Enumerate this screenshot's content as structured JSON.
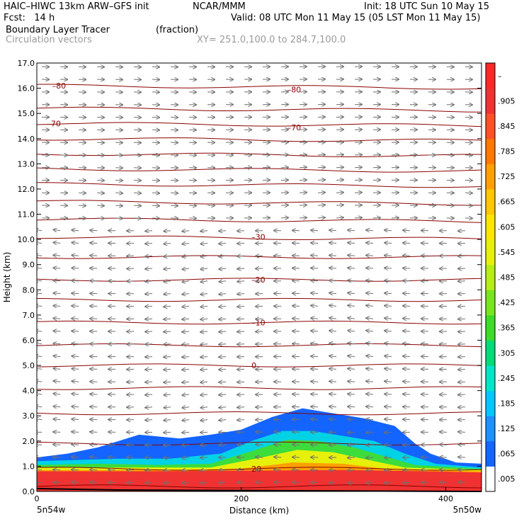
{
  "header": {
    "model": "HAIC–HIWC 13km ARW–GFS init",
    "org": "NCAR/MMM",
    "init": "Init: 18 UTC Sun 10 May 15",
    "fcst": "Fcst:   14 h",
    "valid": "Valid: 08 UTC Mon 11 May 15 (05 LST Mon 11 May 15)",
    "field": "Boundary Layer Tracer",
    "field_units": "(fraction)",
    "vectors": "Circulation vectors",
    "xy": "XY= 251.0,100.0 to 284.7,100.0"
  },
  "chart_data": {
    "type": "heatmap",
    "xlabel": "Distance (km)",
    "ylabel": "Height (km)",
    "xlim": [
      0,
      435
    ],
    "ylim": [
      0,
      17
    ],
    "x_ticks": [
      0,
      200,
      400
    ],
    "y_ticks": [
      "0.0",
      "1.0",
      "2.0",
      "3.0",
      "4.0",
      "5.0",
      "6.0",
      "7.0",
      "8.0",
      "9.0",
      "10.0",
      "11.0",
      "12.0",
      "13.0",
      "14.0",
      "15.0",
      "16.0",
      "17.0"
    ],
    "x_end_labels": [
      "5n54w",
      "5n50w"
    ],
    "colorbar": {
      "labels": [
        ".005",
        ".065",
        ".125",
        ".185",
        ".245",
        ".305",
        ".365",
        ".425",
        ".485",
        ".545",
        ".605",
        ".665",
        ".725",
        ".785",
        ".845",
        ".905",
        "–"
      ],
      "colors": [
        "#ffffff",
        "#1464ff",
        "#1e90ff",
        "#00c8ff",
        "#00e6c8",
        "#00dc78",
        "#3cdc28",
        "#78e61e",
        "#b4ee14",
        "#e6f00a",
        "#ffe600",
        "#ffc800",
        "#ffa000",
        "#ff7800",
        "#ff5028",
        "#f03232",
        "#ff2828"
      ]
    },
    "isotherms": [
      {
        "z": 0.2,
        "label": ""
      },
      {
        "z": 0.9,
        "label": "20"
      },
      {
        "z": 1.9,
        "label": ""
      },
      {
        "z": 3.1,
        "label": ""
      },
      {
        "z": 4.1,
        "label": ""
      },
      {
        "z": 5.0,
        "label": "0"
      },
      {
        "z": 5.8,
        "label": ""
      },
      {
        "z": 6.7,
        "label": "–10"
      },
      {
        "z": 7.6,
        "label": ""
      },
      {
        "z": 8.4,
        "label": "–20"
      },
      {
        "z": 9.3,
        "label": ""
      },
      {
        "z": 10.1,
        "label": "–30"
      },
      {
        "z": 10.8,
        "label": ""
      },
      {
        "z": 11.5,
        "label": ""
      },
      {
        "z": 12.2,
        "label": ""
      },
      {
        "z": 12.8,
        "label": ""
      },
      {
        "z": 13.4,
        "label": ""
      },
      {
        "z": 14.0,
        "label": ""
      },
      {
        "z": 14.6,
        "label": "–70"
      },
      {
        "z": 15.2,
        "label": ""
      },
      {
        "z": 16.1,
        "label": "–80"
      }
    ],
    "tracer_bands": [
      {
        "level": 0.005,
        "color": "#1464ff",
        "top": [
          [
            0,
            1.35
          ],
          [
            30,
            1.5
          ],
          [
            60,
            1.75
          ],
          [
            100,
            2.25
          ],
          [
            140,
            2.1
          ],
          [
            170,
            2.25
          ],
          [
            200,
            2.45
          ],
          [
            230,
            2.95
          ],
          [
            260,
            3.3
          ],
          [
            290,
            3.1
          ],
          [
            320,
            2.9
          ],
          [
            350,
            2.6
          ],
          [
            370,
            1.9
          ],
          [
            385,
            1.5
          ],
          [
            410,
            1.15
          ],
          [
            435,
            1.1
          ]
        ]
      },
      {
        "level": 0.185,
        "color": "#00d2e6",
        "top": [
          [
            0,
            1.2
          ],
          [
            40,
            1.25
          ],
          [
            80,
            1.3
          ],
          [
            130,
            1.3
          ],
          [
            180,
            1.5
          ],
          [
            210,
            2.0
          ],
          [
            240,
            2.4
          ],
          [
            270,
            2.4
          ],
          [
            300,
            2.2
          ],
          [
            330,
            2.0
          ],
          [
            360,
            1.5
          ],
          [
            390,
            1.1
          ],
          [
            435,
            0.95
          ]
        ]
      },
      {
        "level": 0.365,
        "color": "#3cdc3c",
        "top": [
          [
            0,
            1.05
          ],
          [
            60,
            1.1
          ],
          [
            120,
            1.05
          ],
          [
            170,
            1.1
          ],
          [
            210,
            1.6
          ],
          [
            245,
            2.05
          ],
          [
            275,
            2.0
          ],
          [
            310,
            1.75
          ],
          [
            340,
            1.4
          ],
          [
            370,
            1.05
          ],
          [
            435,
            0.9
          ]
        ]
      },
      {
        "level": 0.545,
        "color": "#e6f00a",
        "top": [
          [
            0,
            0.95
          ],
          [
            100,
            0.95
          ],
          [
            170,
            0.95
          ],
          [
            220,
            1.35
          ],
          [
            255,
            1.65
          ],
          [
            290,
            1.55
          ],
          [
            330,
            1.2
          ],
          [
            360,
            0.95
          ],
          [
            435,
            0.85
          ]
        ]
      },
      {
        "level": 0.725,
        "color": "#ffa000",
        "top": [
          [
            0,
            0.85
          ],
          [
            120,
            0.85
          ],
          [
            200,
            0.9
          ],
          [
            250,
            1.15
          ],
          [
            300,
            1.1
          ],
          [
            350,
            0.85
          ],
          [
            435,
            0.8
          ]
        ]
      },
      {
        "level": 0.905,
        "color": "#f03232",
        "top": [
          [
            0,
            0.8
          ],
          [
            100,
            0.8
          ],
          [
            200,
            0.82
          ],
          [
            300,
            0.85
          ],
          [
            380,
            0.8
          ],
          [
            435,
            0.75
          ]
        ]
      }
    ]
  }
}
